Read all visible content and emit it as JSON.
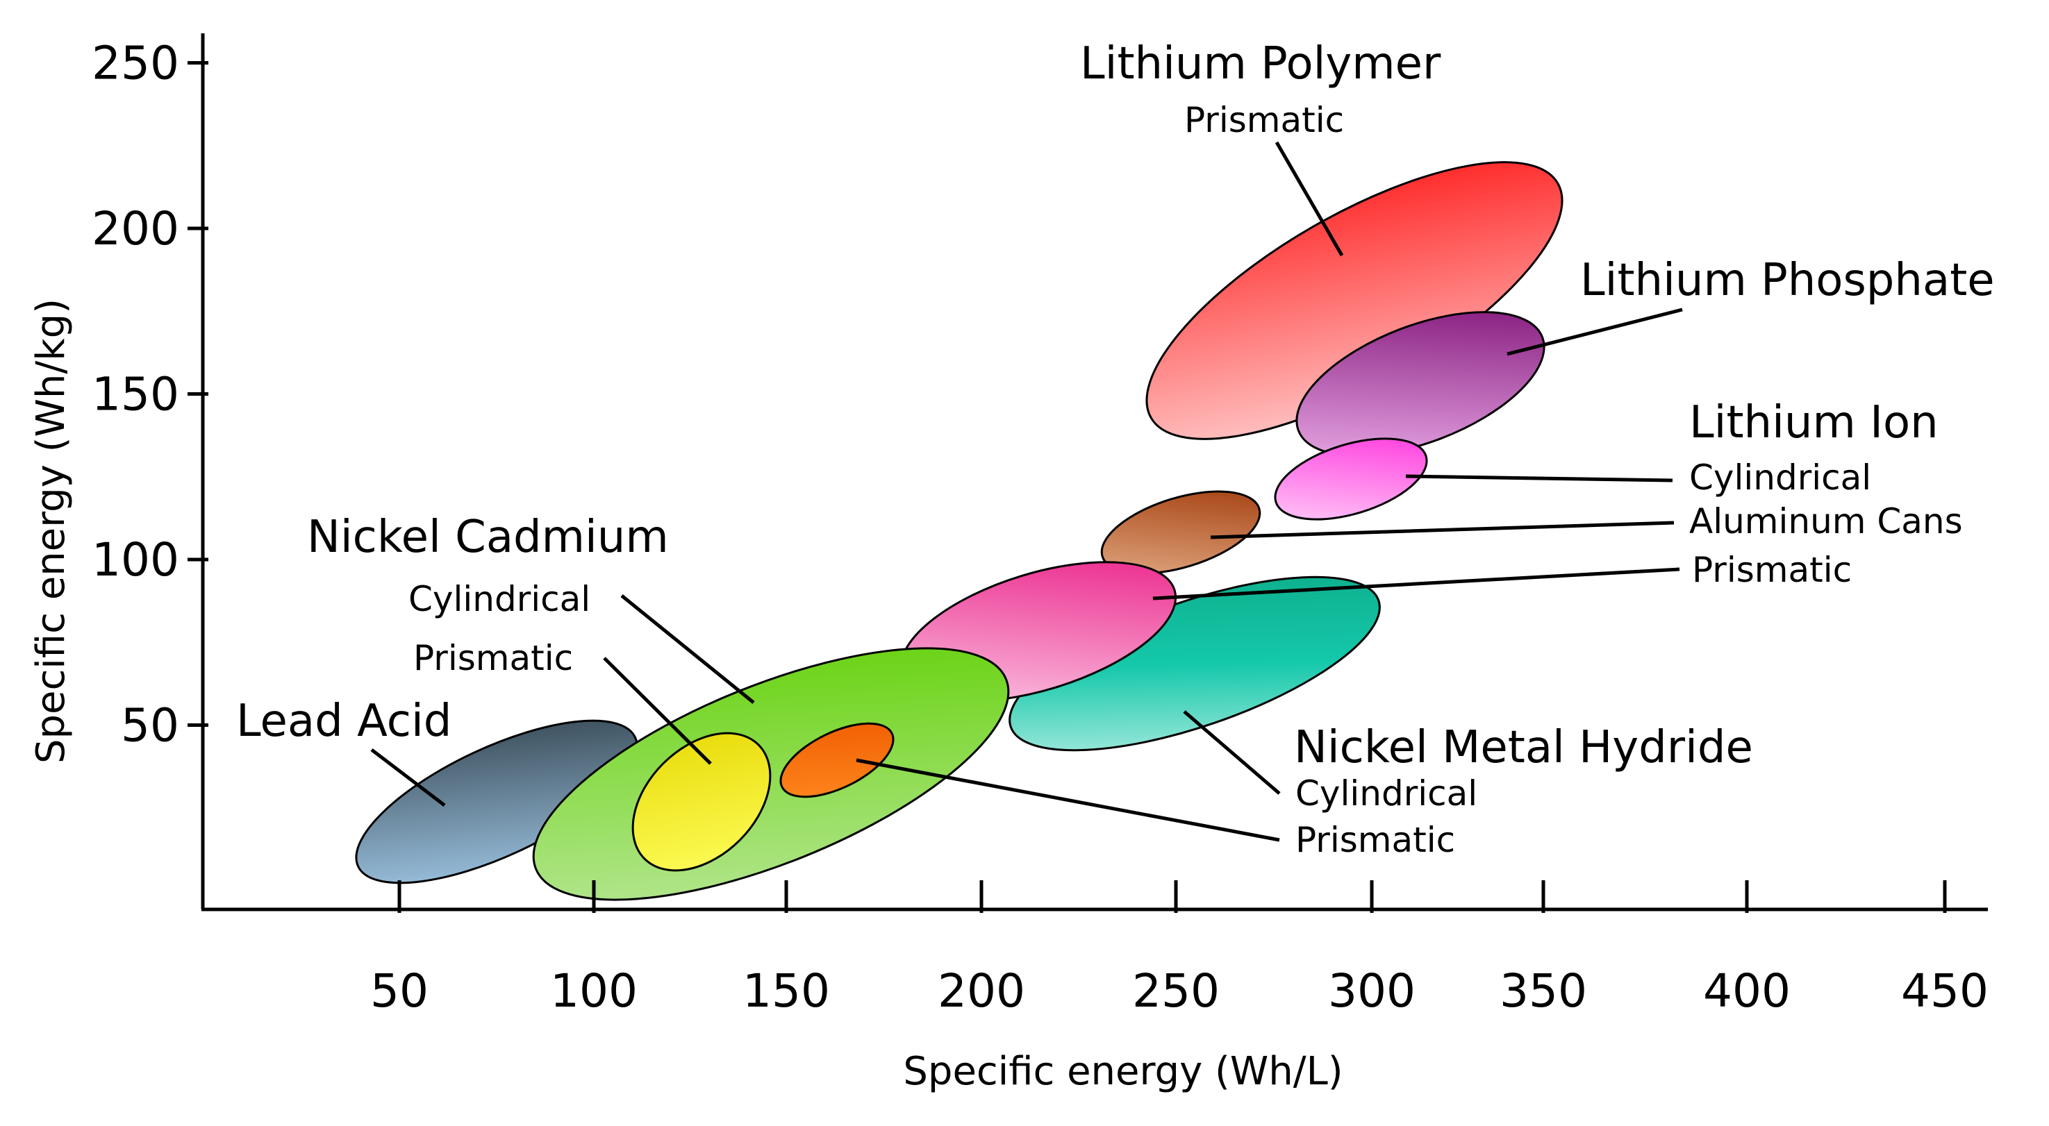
{
  "chart_data": {
    "type": "scatter",
    "xlabel": "Specific energy (Wh/L)",
    "ylabel": "Specific energy (Wh/kg)",
    "xlim": [
      0,
      480
    ],
    "ylim": [
      0,
      260
    ],
    "xticks": [
      50,
      100,
      150,
      200,
      250,
      300,
      350,
      400,
      450
    ],
    "yticks": [
      50,
      100,
      150,
      200,
      250
    ],
    "grid": false,
    "regions": [
      {
        "id": "lead-acid",
        "x_range": [
          40,
          110
        ],
        "y_range": [
          10,
          48
        ],
        "color": "#6a869c"
      },
      {
        "id": "nicd-cylindrical",
        "x_range": [
          85,
          185
        ],
        "y_range": [
          5,
          65
        ],
        "color": "#7fd21c"
      },
      {
        "id": "nicd-prismatic",
        "x_range": [
          110,
          145
        ],
        "y_range": [
          15,
          44
        ],
        "color": "#ede60b"
      },
      {
        "id": "nimh-prismatic-inner",
        "x_range": [
          145,
          177
        ],
        "y_range": [
          35,
          48
        ],
        "color": "#fa6a08"
      },
      {
        "id": "li-ion-prismatic",
        "x_range": [
          175,
          250
        ],
        "y_range": [
          60,
          90
        ],
        "color": "#f0449e"
      },
      {
        "id": "nimh-cylindrical",
        "x_range": [
          210,
          305
        ],
        "y_range": [
          40,
          85
        ],
        "color": "#28bfa8"
      },
      {
        "id": "li-ion-aluminum-cans",
        "x_range": [
          230,
          272
        ],
        "y_range": [
          97,
          117
        ],
        "color": "#a8522e"
      },
      {
        "id": "li-ion-cylindrical",
        "x_range": [
          275,
          315
        ],
        "y_range": [
          110,
          130
        ],
        "color": "#ff66e8"
      },
      {
        "id": "lithium-polymer-prismatic",
        "x_range": [
          240,
          340
        ],
        "y_range": [
          138,
          218
        ],
        "color": "#ff3a3a"
      },
      {
        "id": "lithium-phosphate",
        "x_range": [
          280,
          345
        ],
        "y_range": [
          133,
          172
        ],
        "color": "#a13ab5"
      }
    ],
    "labels": {
      "lead_acid": "Lead Acid",
      "nickel_cadmium": "Nickel Cadmium",
      "nicd_cylindrical": "Cylindrical",
      "nicd_prismatic": "Prismatic",
      "lithium_polymer": "Lithium Polymer",
      "lipo_prismatic": "Prismatic",
      "lithium_phosphate": "Lithium Phosphate",
      "lithium_ion": "Lithium Ion",
      "liion_cylindrical": "Cylindrical",
      "liion_aluminum_cans": "Aluminum Cans",
      "liion_prismatic": "Prismatic",
      "nickel_metal_hydride": "Nickel Metal Hydride",
      "nimh_cylindrical": "Cylindrical",
      "nimh_prismatic": "Prismatic"
    }
  }
}
